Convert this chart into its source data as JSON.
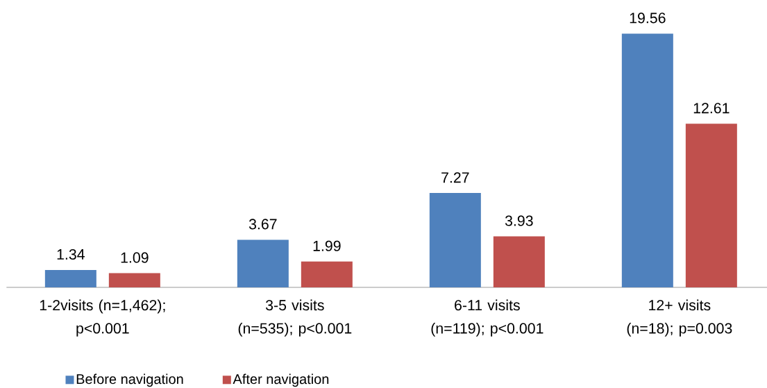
{
  "chart_data": {
    "type": "bar",
    "categories": [
      "1-2visits (n=1,462); p<0.001",
      "3-5 visits (n=535); p<0.001",
      "6-11 visits (n=119); p<0.001",
      "12+ visits (n=18); p=0.003"
    ],
    "series": [
      {
        "name": "Before navigation",
        "color": "#4f81bd",
        "values": [
          1.34,
          3.67,
          7.27,
          19.56
        ]
      },
      {
        "name": "After navigation",
        "color": "#c0504d",
        "values": [
          1.09,
          1.99,
          3.93,
          12.61
        ]
      }
    ],
    "data_labels": true,
    "legend": "bottom left"
  }
}
